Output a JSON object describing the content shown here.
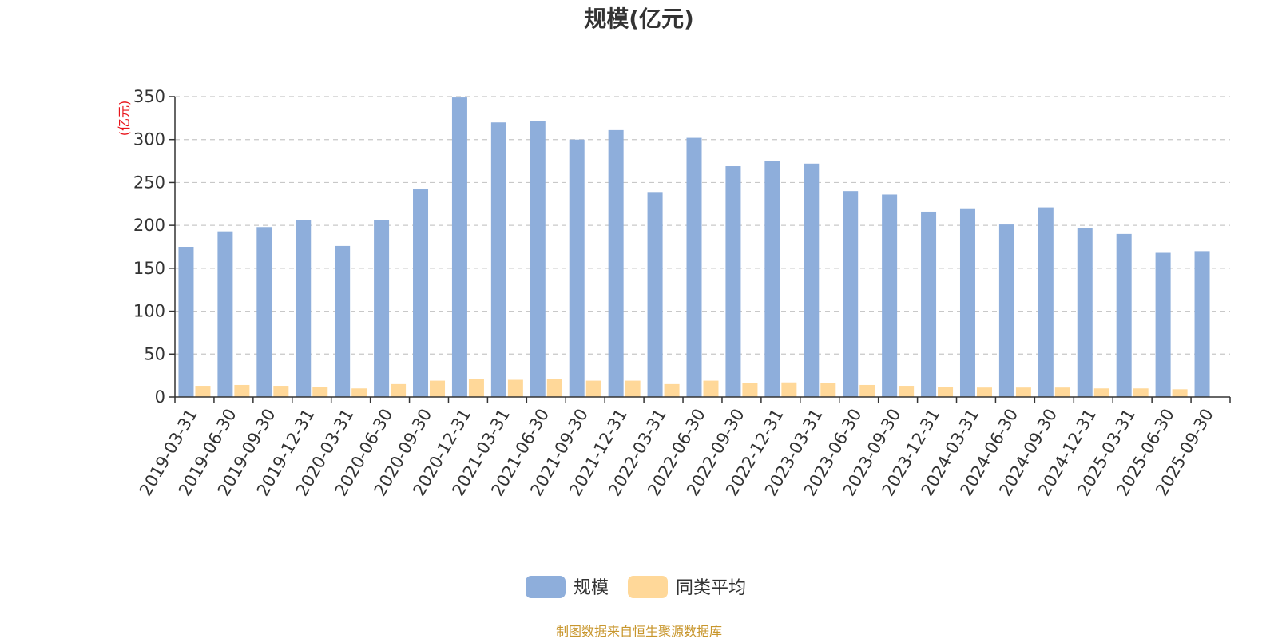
{
  "chart_data": {
    "type": "bar",
    "title": "规模(亿元)",
    "ylabel": "(亿元)",
    "xlabel": "",
    "ylim": [
      0,
      350
    ],
    "yticks": [
      0,
      50,
      100,
      150,
      200,
      250,
      300,
      350
    ],
    "grid": true,
    "legend_position": "bottom-center",
    "categories": [
      "2019-03-31",
      "2019-06-30",
      "2019-09-30",
      "2019-12-31",
      "2020-03-31",
      "2020-06-30",
      "2020-09-30",
      "2020-12-31",
      "2021-03-31",
      "2021-06-30",
      "2021-09-30",
      "2021-12-31",
      "2022-03-31",
      "2022-06-30",
      "2022-09-30",
      "2022-12-31",
      "2023-03-31",
      "2023-06-30",
      "2023-09-30",
      "2023-12-31",
      "2024-03-31",
      "2024-06-30",
      "2024-09-30",
      "2024-12-31",
      "2025-03-31",
      "2025-06-30",
      "2025-09-30"
    ],
    "series": [
      {
        "name": "规模",
        "color": "#8eaedb",
        "values": [
          175,
          193,
          198,
          206,
          176,
          206,
          242,
          349,
          320,
          322,
          300,
          311,
          238,
          302,
          269,
          275,
          272,
          240,
          236,
          216,
          219,
          201,
          221,
          197,
          190,
          168,
          170
        ]
      },
      {
        "name": "同类平均",
        "color": "#ffd899",
        "values": [
          13,
          14,
          13,
          12,
          10,
          15,
          19,
          21,
          20,
          21,
          19,
          19,
          15,
          19,
          16,
          17,
          16,
          14,
          13,
          12,
          11,
          11,
          11,
          10,
          10,
          9,
          null
        ]
      }
    ],
    "source": "制图数据来自恒生聚源数据库"
  }
}
